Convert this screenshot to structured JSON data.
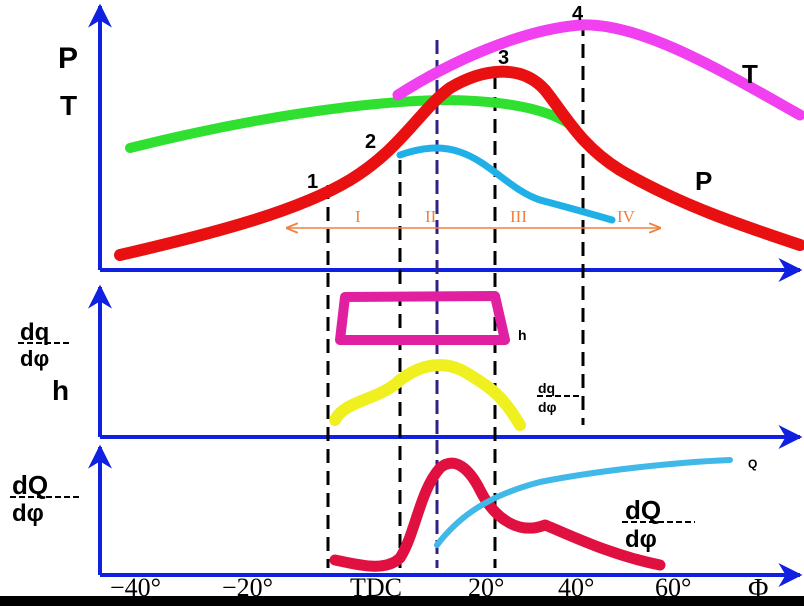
{
  "axis_labels": {
    "p": "P",
    "t": "T",
    "dq_num": "dq",
    "dq_den": "dφ",
    "h": "h",
    "dQ_num": "dQ",
    "dQ_den": "dφ"
  },
  "curve_labels": {
    "t": "T",
    "p": "P",
    "h": "h",
    "dq_num": "dq",
    "dq_den": "dφ",
    "q": "Q",
    "dQ_num": "dQ",
    "dQ_den": "dφ"
  },
  "points": [
    "1",
    "2",
    "3",
    "4"
  ],
  "phases": [
    "I",
    "II",
    "III",
    "IV"
  ],
  "x_labels": [
    "−40°",
    "−20°",
    "TDC",
    "20°",
    "40°",
    "60°"
  ],
  "x_axis_label": "Φ"
}
